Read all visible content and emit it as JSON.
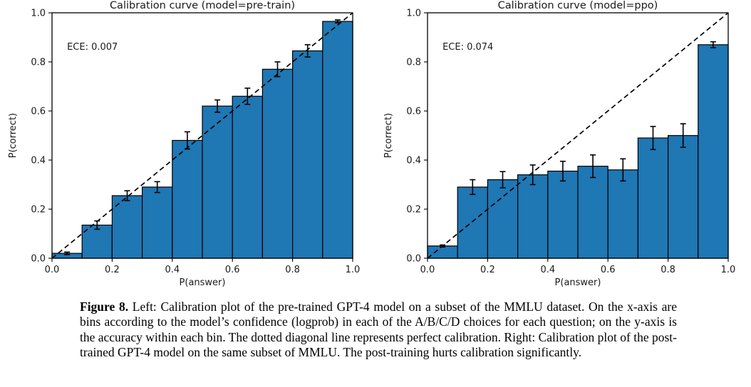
{
  "page": {
    "background_color": "#ffffff"
  },
  "chart_data": [
    {
      "type": "bar",
      "title": "Calibration curve (model=pre-train)",
      "annotation": "ECE: 0.007",
      "xlabel": "P(answer)",
      "ylabel": "P(correct)",
      "xlim": [
        0.0,
        1.0
      ],
      "ylim": [
        0.0,
        1.0
      ],
      "x_ticks": [
        "0.0",
        "0.2",
        "0.4",
        "0.6",
        "0.8",
        "1.0"
      ],
      "y_ticks": [
        "0.0",
        "0.2",
        "0.4",
        "0.6",
        "0.8",
        "1.0"
      ],
      "grid": false,
      "legend": null,
      "bin_width": 0.1,
      "bin_centers": [
        0.05,
        0.15,
        0.25,
        0.35,
        0.45,
        0.55,
        0.65,
        0.75,
        0.85,
        0.95
      ],
      "values": [
        0.02,
        0.135,
        0.255,
        0.29,
        0.48,
        0.62,
        0.66,
        0.77,
        0.845,
        0.965
      ],
      "errors": [
        0.005,
        0.017,
        0.02,
        0.022,
        0.035,
        0.025,
        0.033,
        0.03,
        0.025,
        0.006
      ],
      "diagonal": {
        "from": [
          0.0,
          0.0
        ],
        "to": [
          1.0,
          1.0
        ],
        "style": "dashed"
      },
      "bar_color": "#1f77b4",
      "bar_edge_color": "#000000"
    },
    {
      "type": "bar",
      "title": "Calibration curve (model=ppo)",
      "annotation": "ECE: 0.074",
      "xlabel": "P(answer)",
      "ylabel": "P(correct)",
      "xlim": [
        0.0,
        1.0
      ],
      "ylim": [
        0.0,
        1.0
      ],
      "x_ticks": [
        "0.0",
        "0.2",
        "0.4",
        "0.6",
        "0.8",
        "1.0"
      ],
      "y_ticks": [
        "0.0",
        "0.2",
        "0.4",
        "0.6",
        "0.8",
        "1.0"
      ],
      "grid": false,
      "legend": null,
      "bin_width": 0.1,
      "bin_centers": [
        0.05,
        0.15,
        0.25,
        0.35,
        0.45,
        0.55,
        0.65,
        0.75,
        0.85,
        0.95
      ],
      "values": [
        0.05,
        0.29,
        0.32,
        0.34,
        0.355,
        0.375,
        0.36,
        0.49,
        0.5,
        0.87
      ],
      "errors": [
        0.004,
        0.03,
        0.033,
        0.04,
        0.04,
        0.046,
        0.045,
        0.047,
        0.048,
        0.012
      ],
      "diagonal": {
        "from": [
          0.0,
          0.0
        ],
        "to": [
          1.0,
          1.0
        ],
        "style": "dashed"
      },
      "bar_color": "#1f77b4",
      "bar_edge_color": "#000000"
    }
  ],
  "caption": {
    "label": "Figure 8.",
    "text": "Left: Calibration plot of the pre-trained GPT-4 model on a subset of the MMLU dataset. On the x-axis are bins according to the model’s confidence (logprob) in each of the A/B/C/D choices for each question; on the y-axis is the accuracy within each bin. The dotted diagonal line represents perfect calibration. Right: Calibration plot of the post-trained GPT-4 model on the same subset of MMLU. The post-training hurts calibration significantly."
  }
}
